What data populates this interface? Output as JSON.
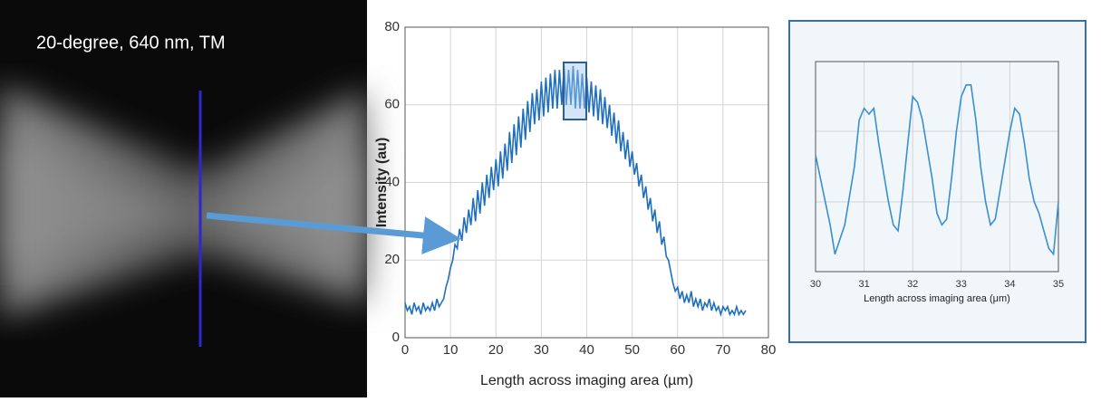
{
  "image_label": "20-degree, 640 nm, TM",
  "chart_data": [
    {
      "type": "line",
      "ylabel": "Intensity (au)",
      "xlabel": "Length across imaging area (µm)",
      "color": "#1f6fbf",
      "xlim": [
        0,
        80
      ],
      "ylim": [
        0,
        80
      ],
      "xticks": [
        0,
        10,
        20,
        30,
        40,
        50,
        60,
        70,
        80
      ],
      "yticks": [
        0,
        20,
        40,
        60,
        80
      ],
      "grid": true,
      "x": [
        0,
        0.5,
        1,
        1.5,
        2,
        2.5,
        3,
        3.5,
        4,
        4.5,
        5,
        5.5,
        6,
        6.5,
        7,
        7.5,
        8,
        8.5,
        9,
        9.5,
        10,
        10.5,
        11,
        11.5,
        12,
        12.5,
        13,
        13.5,
        14,
        14.5,
        15,
        15.5,
        16,
        16.5,
        17,
        17.5,
        18,
        18.5,
        19,
        19.5,
        20,
        20.5,
        21,
        21.5,
        22,
        22.5,
        23,
        23.5,
        24,
        24.5,
        25,
        25.5,
        26,
        26.5,
        27,
        27.5,
        28,
        28.5,
        29,
        29.5,
        30,
        30.5,
        31,
        31.5,
        32,
        32.5,
        33,
        33.5,
        34,
        34.5,
        35,
        35.5,
        36,
        36.5,
        37,
        37.5,
        38,
        38.5,
        39,
        39.5,
        40,
        40.5,
        41,
        41.5,
        42,
        42.5,
        43,
        43.5,
        44,
        44.5,
        45,
        45.5,
        46,
        46.5,
        47,
        47.5,
        48,
        48.5,
        49,
        49.5,
        50,
        50.5,
        51,
        51.5,
        52,
        52.5,
        53,
        53.5,
        54,
        54.5,
        55,
        55.5,
        56,
        56.5,
        57,
        57.5,
        58,
        58.5,
        59,
        59.5,
        60,
        60.5,
        61,
        61.5,
        62,
        62.5,
        63,
        63.5,
        64,
        64.5,
        65,
        65.5,
        66,
        66.5,
        67,
        67.5,
        68,
        68.5,
        69,
        69.5,
        70,
        70.5,
        71,
        71.5,
        72,
        72.5,
        73,
        73.5,
        74,
        74.5,
        75
      ],
      "values": [
        9,
        7,
        8,
        6,
        9,
        7,
        8,
        6,
        9,
        7,
        8,
        7,
        9,
        7,
        10,
        8,
        9,
        10,
        13,
        15,
        18,
        20,
        24,
        23,
        28,
        25,
        31,
        27,
        33,
        29,
        36,
        30,
        38,
        32,
        40,
        34,
        42,
        36,
        44,
        38,
        46,
        39,
        48,
        41,
        50,
        43,
        53,
        45,
        55,
        47,
        57,
        49,
        59,
        51,
        61,
        53,
        63,
        55,
        64,
        56,
        66,
        57,
        67,
        58,
        68,
        59,
        69,
        59,
        69,
        60,
        70,
        60,
        69,
        60,
        70,
        59,
        69,
        59,
        68,
        59,
        67,
        58,
        66,
        57,
        65,
        56,
        64,
        55,
        62,
        54,
        60,
        52,
        58,
        50,
        56,
        48,
        53,
        46,
        51,
        44,
        48,
        42,
        45,
        39,
        42,
        36,
        39,
        33,
        36,
        30,
        33,
        27,
        30,
        24,
        26,
        21,
        20,
        17,
        14,
        12,
        13,
        10,
        12,
        9,
        11,
        9,
        12,
        8,
        10,
        8,
        10,
        7,
        9,
        8,
        10,
        7,
        9,
        7,
        8,
        6,
        8,
        7,
        8,
        6,
        7,
        6,
        8,
        6,
        7,
        6,
        7
      ]
    },
    {
      "type": "line",
      "xlabel": "Length across imaging area (μm)",
      "color": "#3a8fd0",
      "xlim": [
        30,
        35
      ],
      "ylim": [
        54,
        72
      ],
      "xticks": [
        30,
        31,
        32,
        33,
        34,
        35
      ],
      "grid": true,
      "x": [
        30,
        30.2,
        30.3,
        30.4,
        30.6,
        30.8,
        30.9,
        31,
        31.1,
        31.2,
        31.3,
        31.5,
        31.6,
        31.7,
        31.8,
        31.9,
        32,
        32.1,
        32.2,
        32.4,
        32.5,
        32.6,
        32.7,
        32.8,
        32.9,
        33,
        33.1,
        33.2,
        33.3,
        33.4,
        33.5,
        33.6,
        33.7,
        33.8,
        34,
        34.1,
        34.2,
        34.3,
        34.4,
        34.5,
        34.6,
        34.8,
        34.9,
        35
      ],
      "values": [
        64,
        60,
        58,
        55.5,
        58,
        63,
        67,
        68,
        67.5,
        68,
        65,
        60,
        58,
        57.5,
        61,
        65,
        69,
        68.5,
        67,
        62,
        59,
        58,
        58.5,
        62,
        66,
        69,
        70,
        70,
        67,
        63,
        60,
        58,
        58.5,
        61,
        66,
        68,
        67.5,
        65,
        62,
        60,
        59,
        56,
        55.5,
        60
      ]
    }
  ]
}
